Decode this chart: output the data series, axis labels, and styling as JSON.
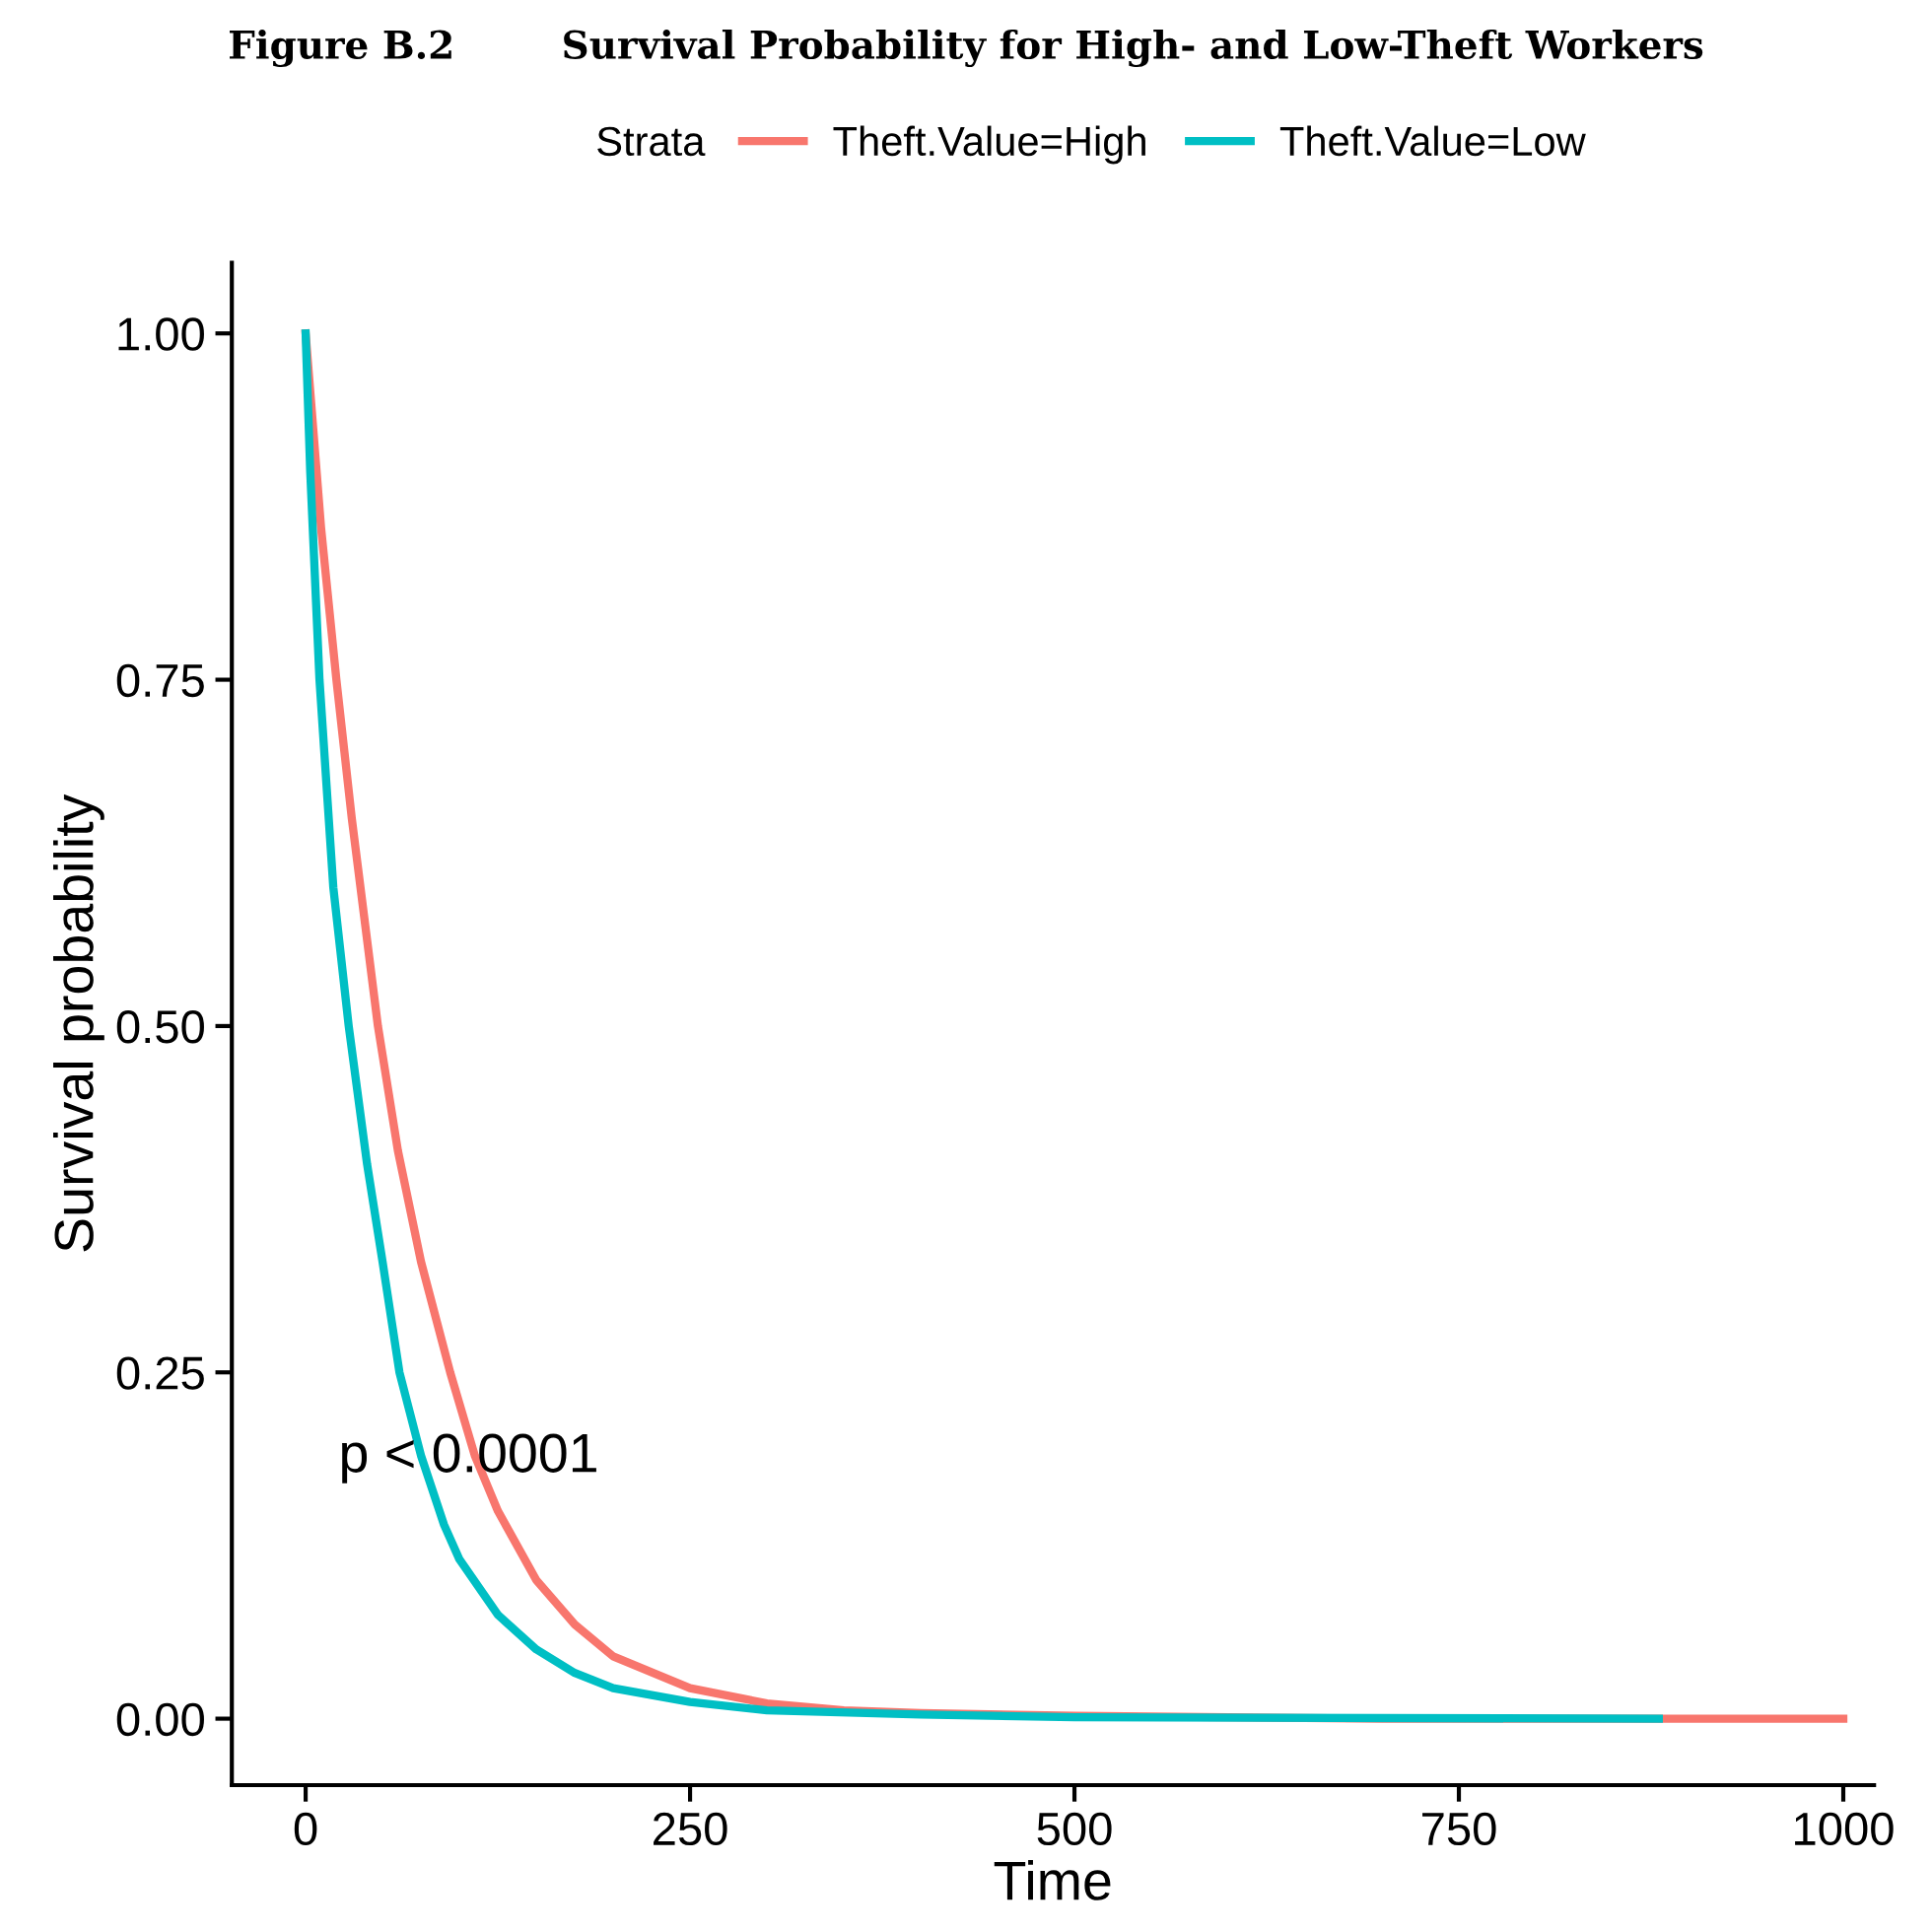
{
  "chart_data": {
    "type": "line",
    "title": "Figure B.2        Survival Probability for High- and Low-Theft Workers",
    "xlabel": "Time",
    "ylabel": "Survival probability",
    "legend_title": "Strata",
    "legend": "top",
    "annotations": [
      "p < 0.0001"
    ],
    "xlim": [
      -48,
      1020
    ],
    "xticks": [
      0,
      250,
      500,
      750,
      1000
    ],
    "ylim": [
      -0.048,
      1.051
    ],
    "yticks": [
      {
        "value": 0,
        "label": "0.00"
      },
      {
        "value": 0.25,
        "label": "0.25"
      },
      {
        "value": 0.5,
        "label": "0.50"
      },
      {
        "value": 0.75,
        "label": "0.75"
      },
      {
        "value": 1,
        "label": "1.00"
      }
    ],
    "grid": false,
    "series": [
      {
        "name": "Theft.Value=High",
        "color": "#f8766d",
        "x": [
          0,
          5,
          10,
          20,
          30,
          47,
          60,
          75,
          94,
          110,
          125,
          150,
          175,
          200,
          250,
          300,
          350,
          400,
          500,
          600,
          700,
          1000
        ],
        "values": [
          1,
          0.93,
          0.86,
          0.75,
          0.65,
          0.5,
          0.41,
          0.33,
          0.25,
          0.19,
          0.15,
          0.1,
          0.068,
          0.045,
          0.022,
          0.011,
          0.006,
          0.004,
          0.002,
          0.001,
          0,
          0
        ]
      },
      {
        "name": "Theft.Value=Low",
        "color": "#00bfc4",
        "x": [
          0,
          3,
          9,
          18,
          28,
          40,
          50,
          61,
          75,
          90,
          100,
          125,
          150,
          175,
          200,
          250,
          300,
          400,
          500,
          880
        ],
        "values": [
          1,
          0.9,
          0.75,
          0.6,
          0.5,
          0.4,
          0.33,
          0.25,
          0.19,
          0.14,
          0.115,
          0.075,
          0.05,
          0.033,
          0.022,
          0.012,
          0.006,
          0.003,
          0.001,
          0
        ]
      }
    ]
  }
}
